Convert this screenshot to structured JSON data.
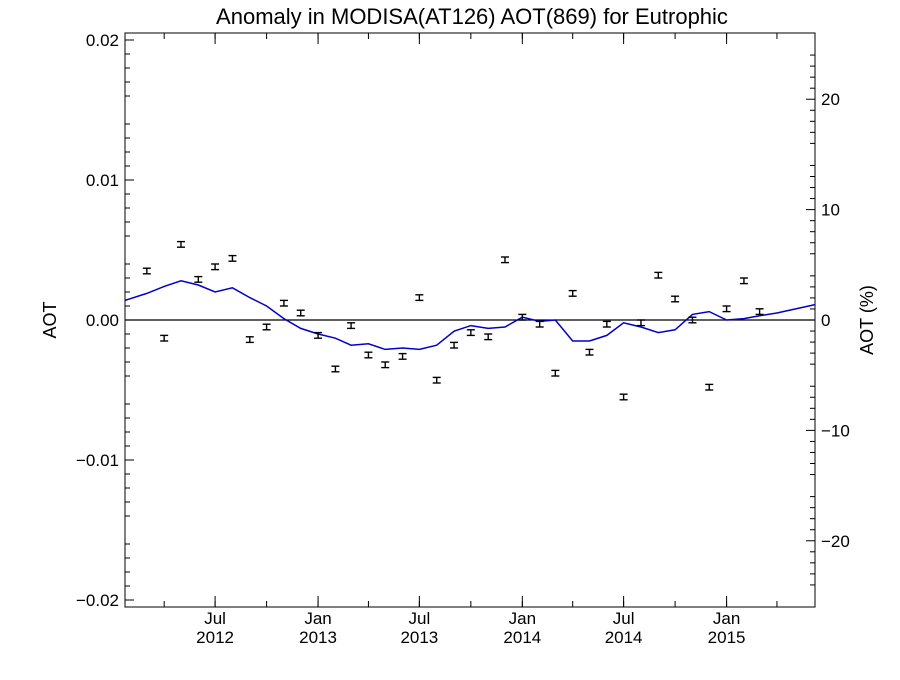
{
  "chart_data": {
    "type": "scatter",
    "title": "Anomaly in MODISA(AT126) AOT(869) for Eutrophic",
    "ylabel": "AOT",
    "ylabel_right": "AOT (%)",
    "xlim": [
      "2012-01-22",
      "2015-06-08"
    ],
    "ylim": [
      -0.0205,
      0.0205
    ],
    "ylim_right": [
      -26,
      26
    ],
    "y_ticks": [
      {
        "value": 0.02,
        "label": "0.02"
      },
      {
        "value": 0.01,
        "label": "0.01"
      },
      {
        "value": 0.0,
        "label": "0.00"
      },
      {
        "value": -0.01,
        "label": "−0.01"
      },
      {
        "value": -0.02,
        "label": "−0.02"
      }
    ],
    "y_ticks_right": [
      {
        "value": 20,
        "label": "20"
      },
      {
        "value": 10,
        "label": "10"
      },
      {
        "value": 0,
        "label": "0"
      },
      {
        "value": -10,
        "label": "−10"
      },
      {
        "value": -20,
        "label": "−20"
      }
    ],
    "x_ticks": [
      {
        "date": "2012-07-01",
        "label": [
          "Jul",
          "2012"
        ]
      },
      {
        "date": "2013-01-01",
        "label": [
          "Jan",
          "2013"
        ]
      },
      {
        "date": "2013-07-01",
        "label": [
          "Jul",
          "2013"
        ]
      },
      {
        "date": "2014-01-01",
        "label": [
          "Jan",
          "2014"
        ]
      },
      {
        "date": "2014-07-01",
        "label": [
          "Jul",
          "2014"
        ]
      },
      {
        "date": "2015-01-01",
        "label": [
          "Jan",
          "2015"
        ]
      }
    ],
    "zero_line": true,
    "grid": false,
    "colors": {
      "points": "#000000",
      "smooth_line": "#0000cc",
      "zero_line": "#000000"
    },
    "series": [
      {
        "type": "errorbar",
        "x": [
          "2012-03-01",
          "2012-04-01",
          "2012-05-01",
          "2012-06-01",
          "2012-07-01",
          "2012-08-01",
          "2012-09-01",
          "2012-10-01",
          "2012-11-01",
          "2012-12-01",
          "2013-01-01",
          "2013-02-01",
          "2013-03-01",
          "2013-04-01",
          "2013-05-01",
          "2013-06-01",
          "2013-07-01",
          "2013-08-01",
          "2013-09-01",
          "2013-10-01",
          "2013-11-01",
          "2013-12-01",
          "2014-01-01",
          "2014-02-01",
          "2014-03-01",
          "2014-04-01",
          "2014-05-01",
          "2014-06-01",
          "2014-07-01",
          "2014-08-01",
          "2014-09-01",
          "2014-10-01",
          "2014-11-01",
          "2014-12-01",
          "2015-01-01",
          "2015-02-01",
          "2015-03-01"
        ],
        "y": [
          0.0035,
          -0.0013,
          0.0054,
          0.0029,
          0.0038,
          0.0044,
          -0.0014,
          -0.0005,
          0.0012,
          0.0005,
          -0.0011,
          -0.0035,
          -0.0004,
          -0.0025,
          -0.0032,
          -0.0026,
          0.0016,
          -0.0043,
          -0.0018,
          -0.0009,
          -0.0012,
          0.0043,
          0.0002,
          -0.0003,
          -0.0038,
          0.0019,
          -0.0023,
          -0.0003,
          -0.0055,
          -0.0002,
          0.0032,
          0.0015,
          0.0,
          -0.0048,
          0.0008,
          0.0028,
          0.0006
        ],
        "err": 0.0002
      },
      {
        "type": "line",
        "x": [
          "2012-01-22",
          "2012-03-01",
          "2012-04-01",
          "2012-05-01",
          "2012-06-01",
          "2012-07-01",
          "2012-08-01",
          "2012-09-01",
          "2012-10-01",
          "2012-11-01",
          "2012-12-01",
          "2013-01-01",
          "2013-02-01",
          "2013-03-01",
          "2013-04-01",
          "2013-05-01",
          "2013-06-01",
          "2013-07-01",
          "2013-08-01",
          "2013-09-01",
          "2013-10-01",
          "2013-11-01",
          "2013-12-01",
          "2014-01-01",
          "2014-02-01",
          "2014-03-01",
          "2014-04-01",
          "2014-05-01",
          "2014-06-01",
          "2014-07-01",
          "2014-08-01",
          "2014-09-01",
          "2014-10-01",
          "2014-11-01",
          "2014-12-01",
          "2015-01-01",
          "2015-02-01",
          "2015-03-01",
          "2015-04-01",
          "2015-06-08"
        ],
        "y": [
          0.0014,
          0.0019,
          0.0024,
          0.0028,
          0.0025,
          0.002,
          0.0023,
          0.0016,
          0.001,
          0.0001,
          -0.0006,
          -0.001,
          -0.0013,
          -0.0018,
          -0.0017,
          -0.0021,
          -0.002,
          -0.0021,
          -0.0018,
          -0.0008,
          -0.0004,
          -0.0006,
          -0.0005,
          0.0002,
          -0.0001,
          0.0,
          -0.0015,
          -0.0015,
          -0.0011,
          -0.0002,
          -0.0005,
          -0.0009,
          -0.0007,
          0.0004,
          0.0006,
          0.0,
          0.0001,
          0.0003,
          0.0005,
          0.0011
        ]
      }
    ]
  }
}
